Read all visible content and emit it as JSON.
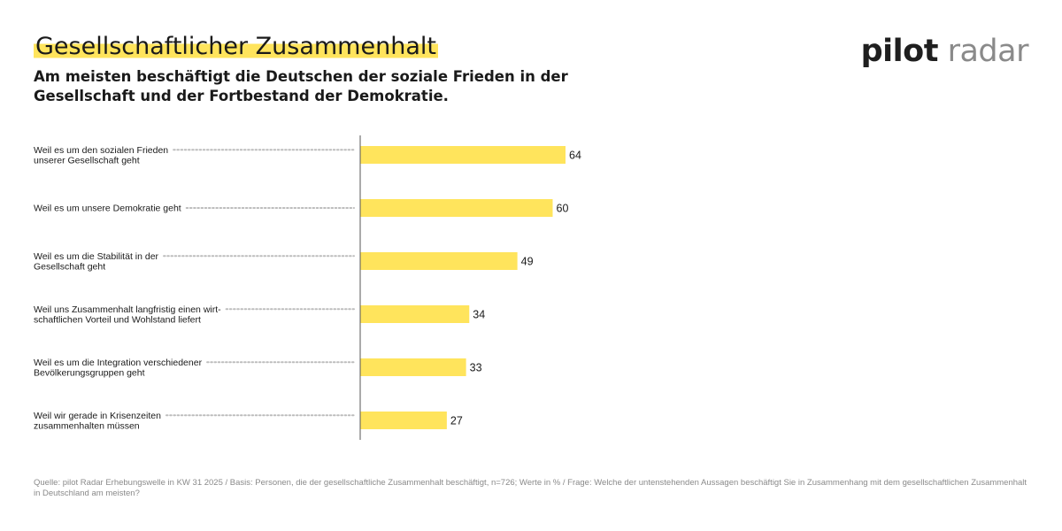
{
  "header": {
    "title": "Gesellschaftlicher Zusammenhalt",
    "subtitle": "Am meisten beschäftigt die Deutschen der soziale Frieden in der Gesellschaft und der Fortbestand der Demokratie."
  },
  "brand": {
    "part1": "pilot",
    "part2": "radar"
  },
  "colors": {
    "bar": "#ffe45c",
    "highlight": "#ffe45c",
    "axis": "#555555",
    "leader": "#bdbdbd"
  },
  "chart_data": {
    "type": "bar",
    "orientation": "horizontal",
    "categories": [
      [
        "Weil es um den sozialen Frieden",
        "unserer Gesellschaft geht"
      ],
      [
        "Weil es um unsere Demokratie geht"
      ],
      [
        "Weil es um die Stabilität in der",
        "Gesellschaft geht"
      ],
      [
        "Weil uns Zusammenhalt langfristig einen wirt-",
        "schaftlichen Vorteil und Wohlstand liefert"
      ],
      [
        "Weil es um die Integration verschiedener",
        "Bevölkerungsgruppen geht"
      ],
      [
        "Weil wir gerade in Krisenzeiten",
        "zusammenhalten müssen"
      ]
    ],
    "values": [
      64,
      60,
      49,
      34,
      33,
      27
    ],
    "unit": "%",
    "xlim": [
      0,
      100
    ],
    "grid": false,
    "legend": "none"
  },
  "footer": {
    "source": "Quelle: pilot Radar Erhebungswelle in KW 31 2025 / Basis: Personen, die der gesellschaftliche Zusammenhalt beschäftigt, n=726; Werte in % / Frage: Welche der untenstehenden Aussagen beschäftigt Sie in Zusammenhang mit dem gesellschaftlichen Zusammenhalt in Deutschland am meisten?"
  }
}
